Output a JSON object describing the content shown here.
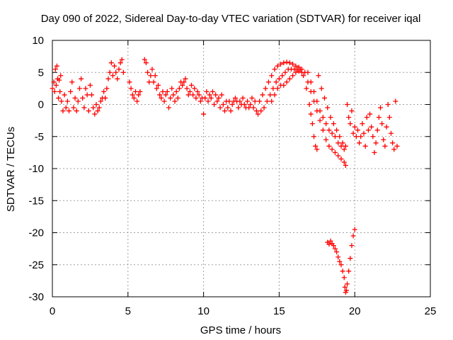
{
  "chart_data": {
    "type": "scatter",
    "title": "Day 090 of 2022, Sidereal Day-to-day VTEC variation (SDTVAR) for receiver iqal",
    "xlabel": "GPS time / hours",
    "ylabel": "SDTVAR / TECUs",
    "xlim": [
      0,
      25
    ],
    "ylim": [
      -30,
      10
    ],
    "x_ticks": [
      0,
      5,
      10,
      15,
      20,
      25
    ],
    "y_ticks": [
      -30,
      -25,
      -20,
      -15,
      -10,
      -5,
      0,
      5,
      10
    ],
    "grid": true,
    "marker": "+",
    "color": "#ff0000",
    "series": [
      {
        "name": "SDTVAR",
        "points": [
          [
            0.0,
            2.5
          ],
          [
            0.1,
            3.5
          ],
          [
            0.15,
            2.0
          ],
          [
            0.2,
            5.5
          ],
          [
            0.25,
            3.0
          ],
          [
            0.3,
            6.0
          ],
          [
            0.35,
            4.0
          ],
          [
            0.4,
            1.0
          ],
          [
            0.45,
            3.8
          ],
          [
            0.5,
            2.0
          ],
          [
            0.55,
            4.5
          ],
          [
            0.6,
            0.5
          ],
          [
            0.7,
            -1.0
          ],
          [
            0.8,
            1.5
          ],
          [
            0.9,
            -0.5
          ],
          [
            1.0,
            0.5
          ],
          [
            1.1,
            -1.0
          ],
          [
            1.2,
            2.0
          ],
          [
            1.3,
            3.5
          ],
          [
            1.4,
            -0.5
          ],
          [
            1.5,
            1.0
          ],
          [
            1.6,
            -1.0
          ],
          [
            1.7,
            0.5
          ],
          [
            1.8,
            2.5
          ],
          [
            1.9,
            4.0
          ],
          [
            2.0,
            1.0
          ],
          [
            2.1,
            -0.5
          ],
          [
            2.2,
            2.5
          ],
          [
            2.3,
            1.5
          ],
          [
            2.4,
            -1.0
          ],
          [
            2.5,
            3.0
          ],
          [
            2.6,
            1.5
          ],
          [
            2.7,
            -0.5
          ],
          [
            2.8,
            -1.5
          ],
          [
            2.9,
            0.0
          ],
          [
            3.0,
            -1.0
          ],
          [
            3.1,
            -0.5
          ],
          [
            3.2,
            0.5
          ],
          [
            3.3,
            1.0
          ],
          [
            3.4,
            2.0
          ],
          [
            3.5,
            1.0
          ],
          [
            3.6,
            2.5
          ],
          [
            3.7,
            4.0
          ],
          [
            3.8,
            5.0
          ],
          [
            3.9,
            6.5
          ],
          [
            4.0,
            4.5
          ],
          [
            4.1,
            6.0
          ],
          [
            4.2,
            5.0
          ],
          [
            4.3,
            4.0
          ],
          [
            4.4,
            5.5
          ],
          [
            4.5,
            6.5
          ],
          [
            4.6,
            7.0
          ],
          [
            4.7,
            5.0
          ],
          [
            5.1,
            3.5
          ],
          [
            5.2,
            2.5
          ],
          [
            5.3,
            1.5
          ],
          [
            5.4,
            1.0
          ],
          [
            5.5,
            2.0
          ],
          [
            5.6,
            0.5
          ],
          [
            5.7,
            1.5
          ],
          [
            5.8,
            2.0
          ],
          [
            6.1,
            7.0
          ],
          [
            6.2,
            6.5
          ],
          [
            6.3,
            5.0
          ],
          [
            6.4,
            3.5
          ],
          [
            6.5,
            4.5
          ],
          [
            6.6,
            5.5
          ],
          [
            6.7,
            3.5
          ],
          [
            6.8,
            4.5
          ],
          [
            6.9,
            2.5
          ],
          [
            7.0,
            3.0
          ],
          [
            7.1,
            1.5
          ],
          [
            7.2,
            1.0
          ],
          [
            7.3,
            2.0
          ],
          [
            7.4,
            0.5
          ],
          [
            7.5,
            1.5
          ],
          [
            7.6,
            2.0
          ],
          [
            7.7,
            -0.5
          ],
          [
            7.8,
            1.0
          ],
          [
            7.9,
            2.5
          ],
          [
            8.0,
            1.5
          ],
          [
            8.1,
            0.5
          ],
          [
            8.2,
            2.0
          ],
          [
            8.3,
            1.0
          ],
          [
            8.4,
            2.5
          ],
          [
            8.5,
            3.5
          ],
          [
            8.6,
            3.0
          ],
          [
            8.7,
            3.5
          ],
          [
            8.8,
            4.0
          ],
          [
            8.9,
            2.5
          ],
          [
            9.0,
            1.5
          ],
          [
            9.1,
            2.0
          ],
          [
            9.2,
            3.0
          ],
          [
            9.3,
            1.5
          ],
          [
            9.4,
            2.5
          ],
          [
            9.5,
            1.0
          ],
          [
            9.6,
            2.0
          ],
          [
            9.7,
            1.5
          ],
          [
            9.8,
            0.5
          ],
          [
            9.9,
            1.0
          ],
          [
            10.0,
            -1.5
          ],
          [
            10.1,
            1.0
          ],
          [
            10.2,
            2.0
          ],
          [
            10.3,
            0.5
          ],
          [
            10.4,
            1.5
          ],
          [
            10.5,
            1.0
          ],
          [
            10.6,
            2.0
          ],
          [
            10.7,
            0.0
          ],
          [
            10.8,
            1.5
          ],
          [
            10.9,
            0.5
          ],
          [
            11.0,
            1.0
          ],
          [
            11.1,
            -0.5
          ],
          [
            11.2,
            1.5
          ],
          [
            11.3,
            0.0
          ],
          [
            11.4,
            -1.0
          ],
          [
            11.5,
            0.5
          ],
          [
            11.6,
            -0.5
          ],
          [
            11.7,
            0.5
          ],
          [
            11.8,
            -1.0
          ],
          [
            11.9,
            0.0
          ],
          [
            12.0,
            0.5
          ],
          [
            12.1,
            1.0
          ],
          [
            12.2,
            0.5
          ],
          [
            12.3,
            -0.5
          ],
          [
            12.4,
            0.5
          ],
          [
            12.5,
            0.0
          ],
          [
            12.6,
            1.0
          ],
          [
            12.7,
            0.0
          ],
          [
            12.8,
            -0.5
          ],
          [
            12.9,
            0.5
          ],
          [
            13.0,
            -0.5
          ],
          [
            13.1,
            0.0
          ],
          [
            13.2,
            1.0
          ],
          [
            13.3,
            -0.5
          ],
          [
            13.4,
            0.5
          ],
          [
            13.5,
            -1.0
          ],
          [
            13.6,
            -1.5
          ],
          [
            13.8,
            -1.0
          ],
          [
            14.0,
            -0.5
          ],
          [
            14.2,
            0.5
          ],
          [
            14.4,
            1.5
          ],
          [
            14.6,
            2.5
          ],
          [
            14.8,
            3.5
          ],
          [
            15.0,
            4.0
          ],
          [
            15.2,
            4.5
          ],
          [
            15.4,
            5.0
          ],
          [
            15.6,
            5.5
          ],
          [
            15.8,
            5.5
          ],
          [
            16.0,
            5.5
          ],
          [
            16.2,
            5.5
          ],
          [
            16.4,
            5.5
          ],
          [
            13.7,
            0.5
          ],
          [
            13.9,
            1.5
          ],
          [
            14.1,
            2.5
          ],
          [
            14.3,
            3.5
          ],
          [
            14.5,
            4.5
          ],
          [
            14.7,
            5.5
          ],
          [
            14.9,
            6.0
          ],
          [
            15.1,
            6.3
          ],
          [
            15.3,
            6.5
          ],
          [
            15.5,
            6.6
          ],
          [
            15.7,
            6.5
          ],
          [
            15.9,
            6.3
          ],
          [
            16.1,
            6.0
          ],
          [
            16.3,
            5.8
          ],
          [
            16.5,
            5.5
          ],
          [
            14.5,
            0.5
          ],
          [
            14.7,
            1.5
          ],
          [
            14.9,
            2.5
          ],
          [
            15.1,
            3.0
          ],
          [
            15.3,
            3.0
          ],
          [
            15.5,
            3.5
          ],
          [
            15.7,
            4.0
          ],
          [
            15.9,
            4.5
          ],
          [
            16.1,
            5.0
          ],
          [
            16.3,
            5.2
          ],
          [
            16.5,
            5.0
          ],
          [
            16.6,
            4.5
          ],
          [
            16.8,
            2.5
          ],
          [
            17.0,
            0.0
          ],
          [
            17.1,
            -1.5
          ],
          [
            17.2,
            -3.0
          ],
          [
            17.3,
            -5.0
          ],
          [
            17.4,
            -6.5
          ],
          [
            17.5,
            -7.0
          ],
          [
            16.7,
            5.0
          ],
          [
            16.9,
            3.5
          ],
          [
            17.1,
            2.0
          ],
          [
            17.3,
            0.5
          ],
          [
            17.5,
            -1.0
          ],
          [
            17.7,
            -2.5
          ],
          [
            17.9,
            -4.0
          ],
          [
            18.1,
            -5.5
          ],
          [
            18.3,
            -6.5
          ],
          [
            18.5,
            -7.0
          ],
          [
            18.7,
            -7.5
          ],
          [
            18.9,
            -8.0
          ],
          [
            19.1,
            -8.5
          ],
          [
            19.3,
            -9.0
          ],
          [
            19.4,
            -9.5
          ],
          [
            16.9,
            5.0
          ],
          [
            17.1,
            3.5
          ],
          [
            17.3,
            2.0
          ],
          [
            17.5,
            0.5
          ],
          [
            17.7,
            -1.0
          ],
          [
            17.9,
            -2.0
          ],
          [
            18.1,
            -3.0
          ],
          [
            18.3,
            -4.0
          ],
          [
            18.5,
            -4.5
          ],
          [
            18.7,
            -5.0
          ],
          [
            18.9,
            -6.0
          ],
          [
            19.1,
            -6.5
          ],
          [
            19.3,
            -7.0
          ],
          [
            17.6,
            4.5
          ],
          [
            17.8,
            2.5
          ],
          [
            18.0,
            1.0
          ],
          [
            18.2,
            -0.5
          ],
          [
            18.4,
            -2.0
          ],
          [
            18.6,
            -3.0
          ],
          [
            18.8,
            -4.0
          ],
          [
            19.0,
            -5.0
          ],
          [
            19.2,
            -6.0
          ],
          [
            19.4,
            -6.5
          ],
          [
            19.5,
            0.0
          ],
          [
            19.6,
            -2.0
          ],
          [
            19.7,
            -3.0
          ],
          [
            19.8,
            -1.0
          ],
          [
            19.9,
            -4.5
          ],
          [
            20.0,
            -3.5
          ],
          [
            20.1,
            -5.0
          ],
          [
            20.2,
            -4.0
          ],
          [
            20.3,
            -6.0
          ],
          [
            20.4,
            -5.0
          ],
          [
            20.5,
            -3.0
          ],
          [
            20.6,
            -4.5
          ],
          [
            20.7,
            -6.5
          ],
          [
            20.8,
            -2.0
          ],
          [
            20.9,
            -4.0
          ],
          [
            21.0,
            -1.5
          ],
          [
            21.1,
            -3.5
          ],
          [
            21.2,
            -5.0
          ],
          [
            21.3,
            -7.5
          ],
          [
            21.4,
            -6.0
          ],
          [
            21.5,
            -4.0
          ],
          [
            21.6,
            -2.0
          ],
          [
            21.7,
            -0.5
          ],
          [
            21.8,
            -3.0
          ],
          [
            21.9,
            -5.5
          ],
          [
            22.0,
            -6.5
          ],
          [
            22.1,
            -3.5
          ],
          [
            22.2,
            0.0
          ],
          [
            22.3,
            -2.0
          ],
          [
            22.4,
            -4.5
          ],
          [
            22.5,
            -6.0
          ],
          [
            22.6,
            -7.0
          ],
          [
            22.7,
            0.5
          ],
          [
            22.8,
            -6.5
          ],
          [
            18.2,
            -21.5
          ],
          [
            18.3,
            -21.8
          ],
          [
            18.4,
            -21.3
          ],
          [
            18.5,
            -21.7
          ],
          [
            18.6,
            -22.0
          ],
          [
            18.7,
            -22.5
          ],
          [
            18.8,
            -23.0
          ],
          [
            18.9,
            -23.8
          ],
          [
            19.0,
            -24.5
          ],
          [
            19.1,
            -25.0
          ],
          [
            19.2,
            -26.0
          ],
          [
            19.3,
            -27.0
          ],
          [
            19.35,
            -28.5
          ],
          [
            19.4,
            -29.3
          ],
          [
            19.45,
            -29.0
          ],
          [
            19.5,
            -28.0
          ],
          [
            19.6,
            -26.0
          ],
          [
            19.7,
            -24.0
          ],
          [
            19.8,
            -22.0
          ],
          [
            19.9,
            -20.5
          ],
          [
            20.0,
            -19.5
          ]
        ]
      }
    ]
  }
}
